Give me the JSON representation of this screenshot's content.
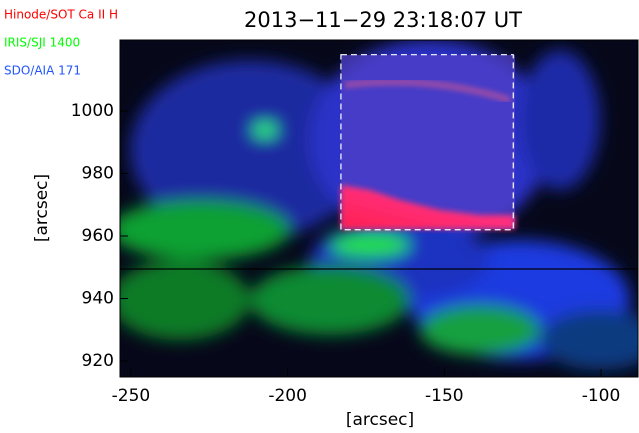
{
  "chart_data": {
    "type": "image",
    "title": "2013−11−29 23:18:07 UT",
    "xlabel": "[arcsec]",
    "ylabel": "[arcsec]",
    "xlim": [
      -253.5,
      -88.2
    ],
    "ylim": [
      914.9,
      1022.7
    ],
    "xticks": [
      -250,
      -200,
      -150,
      -100
    ],
    "yticks": [
      920,
      940,
      960,
      980,
      1000
    ],
    "legend": [
      {
        "label": "Hinode/SOT Ca II H",
        "color": "#ff0000"
      },
      {
        "label": "IRIS/SJI 1400",
        "color": "#00ff00"
      },
      {
        "label": "SDO/AIA 171",
        "color": "#2255ff"
      }
    ],
    "box": {
      "x": [
        -183,
        -128
      ],
      "y": [
        962,
        1018
      ]
    }
  }
}
